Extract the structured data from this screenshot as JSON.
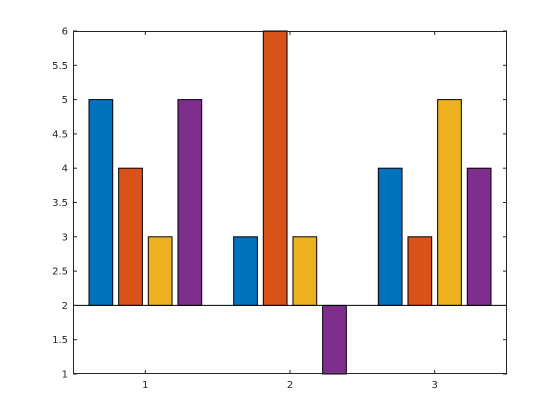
{
  "chart_data": {
    "type": "bar",
    "categories": [
      "1",
      "2",
      "3"
    ],
    "base_value": 2,
    "series": [
      {
        "values": [
          5,
          3,
          4
        ],
        "color": "#0072BD"
      },
      {
        "values": [
          4,
          6,
          3
        ],
        "color": "#D95319"
      },
      {
        "values": [
          3,
          3,
          5
        ],
        "color": "#EDB120"
      },
      {
        "values": [
          5,
          1,
          4
        ],
        "color": "#7E2F8E"
      }
    ],
    "ylim": [
      1,
      6
    ],
    "yticks": [
      1,
      1.5,
      2,
      2.5,
      3,
      3.5,
      4,
      4.5,
      5,
      5.5,
      6
    ],
    "ytick_labels": [
      "1",
      "1.5",
      "2",
      "2.5",
      "3",
      "3.5",
      "4",
      "4.5",
      "5",
      "5.5",
      "6"
    ],
    "xlim": [
      0.5,
      3.5
    ],
    "grid": false,
    "box": true
  }
}
